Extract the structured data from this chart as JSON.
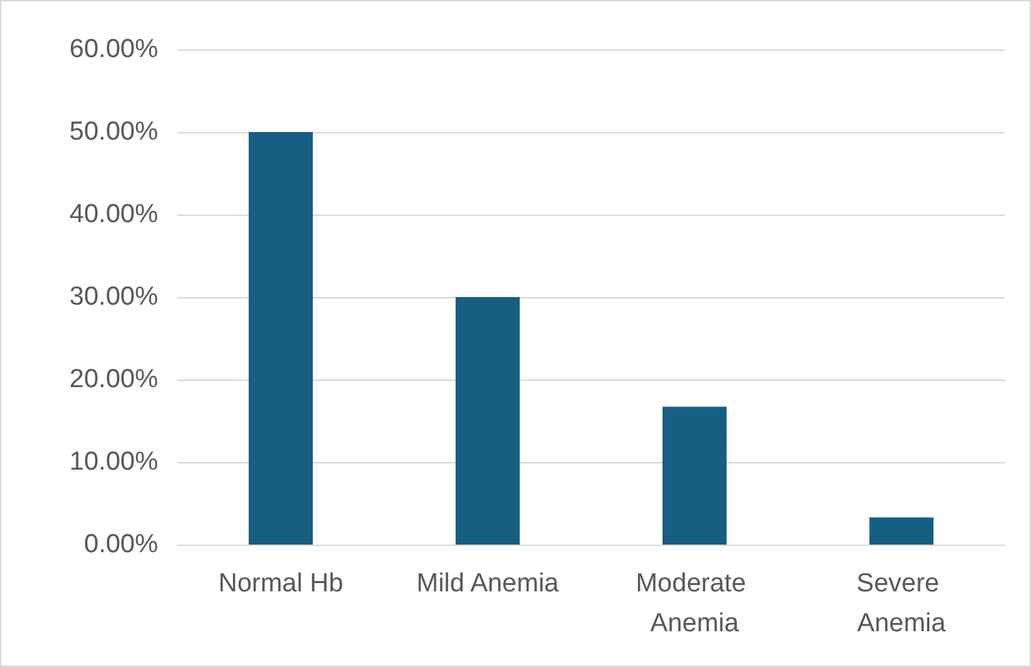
{
  "chart_data": {
    "type": "bar",
    "categories": [
      "Normal Hb",
      "Mild Anemia",
      "Moderate Anemia",
      "Severe Anemia"
    ],
    "values": [
      50,
      30,
      16.7,
      3.3
    ],
    "color": "#175f82",
    "ylim": [
      0,
      60
    ],
    "yticks": [
      {
        "value": 0,
        "label": "0.00%"
      },
      {
        "value": 10,
        "label": "10.00%"
      },
      {
        "value": 20,
        "label": "20.00%"
      },
      {
        "value": 30,
        "label": "30.00%"
      },
      {
        "value": 40,
        "label": "40.00%"
      },
      {
        "value": 50,
        "label": "50.00%"
      },
      {
        "value": 60,
        "label": "60.00%"
      }
    ],
    "grid": "y"
  }
}
